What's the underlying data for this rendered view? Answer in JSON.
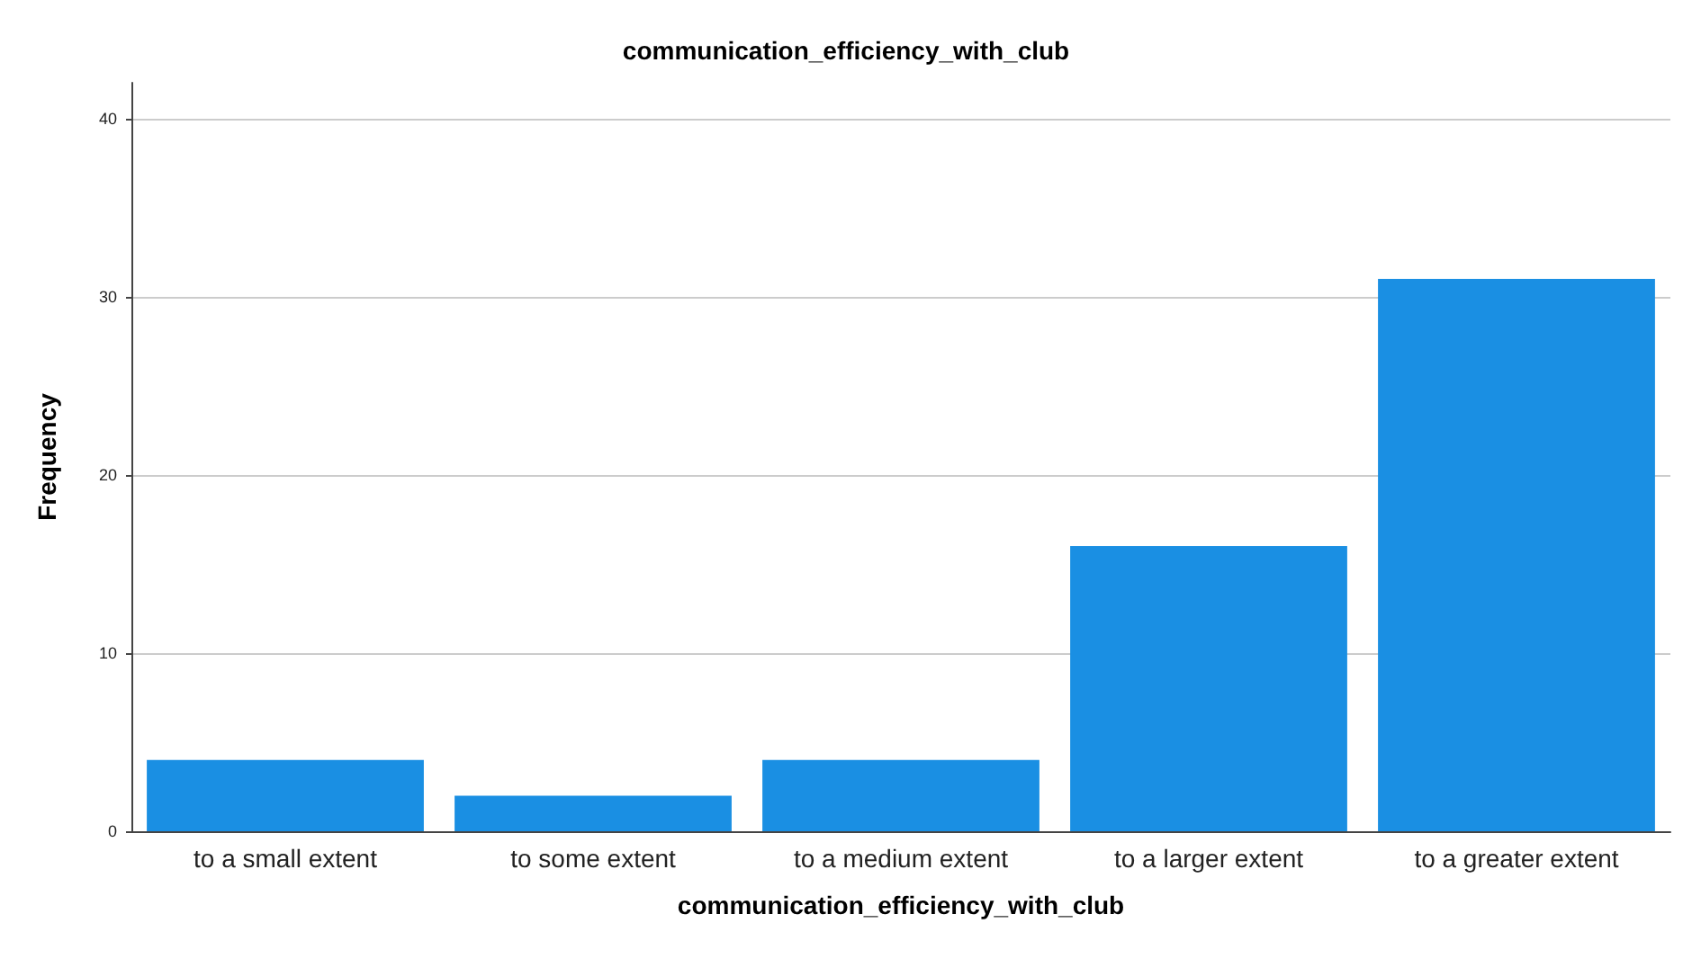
{
  "chart_data": {
    "type": "bar",
    "title": "communication_efficiency_with_club",
    "xlabel": "communication_efficiency_with_club",
    "ylabel": "Frequency",
    "categories": [
      "to a small extent",
      "to some extent",
      "to a medium extent",
      "to a larger extent",
      "to a greater extent"
    ],
    "values": [
      4,
      2,
      4,
      16,
      31
    ],
    "color": "#1a8fe3",
    "ylim": [
      0,
      42
    ],
    "yticks": [
      0,
      10,
      20,
      30,
      40
    ],
    "grid": "y"
  }
}
